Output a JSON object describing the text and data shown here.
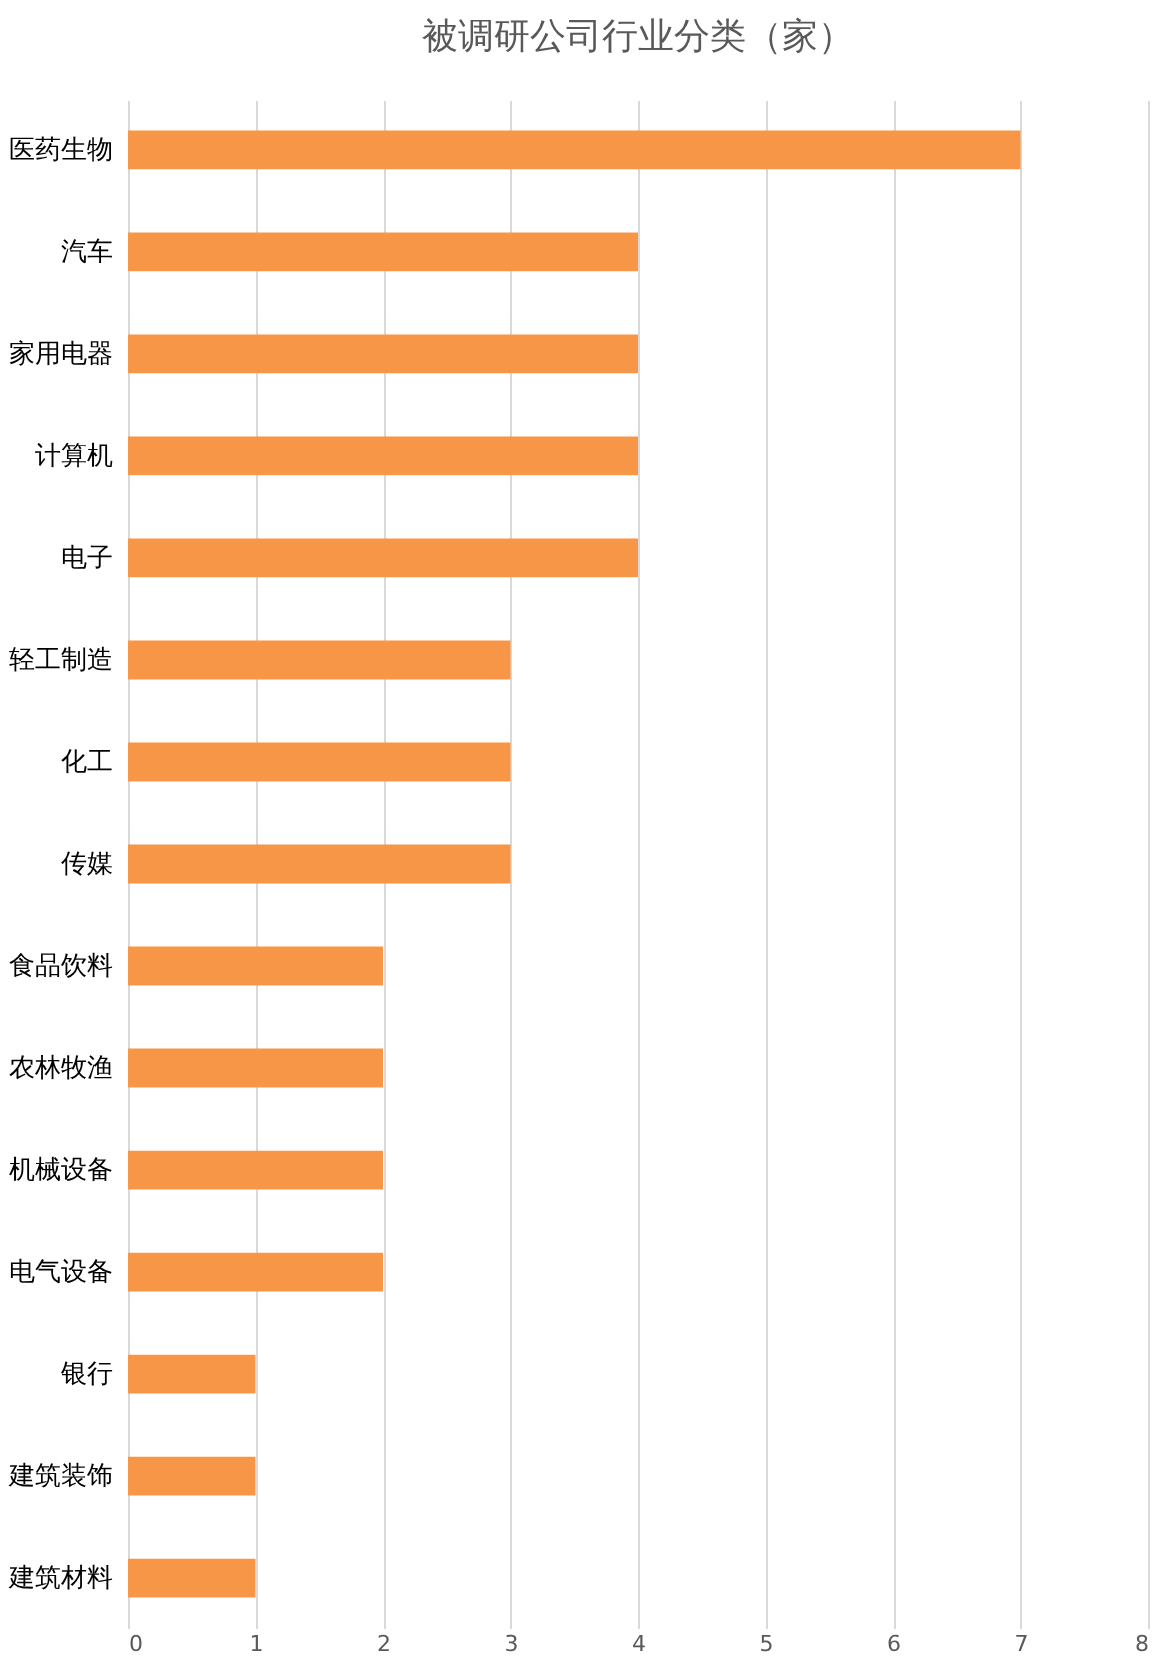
{
  "chart_data": {
    "type": "bar",
    "orientation": "horizontal",
    "title": "被调研公司行业分类（家）",
    "categories": [
      "医药生物",
      "汽车",
      "家用电器",
      "计算机",
      "电子",
      "轻工制造",
      "化工",
      "传媒",
      "食品饮料",
      "农林牧渔",
      "机械设备",
      "电气设备",
      "银行",
      "建筑装饰",
      "建筑材料"
    ],
    "values": [
      7,
      4,
      4,
      4,
      4,
      3,
      3,
      3,
      2,
      2,
      2,
      2,
      1,
      1,
      1
    ],
    "color": "#f79646",
    "xlim": [
      0,
      8
    ],
    "xticks": [
      0,
      1,
      2,
      3,
      4,
      5,
      6,
      7,
      8
    ],
    "grid": "x"
  }
}
